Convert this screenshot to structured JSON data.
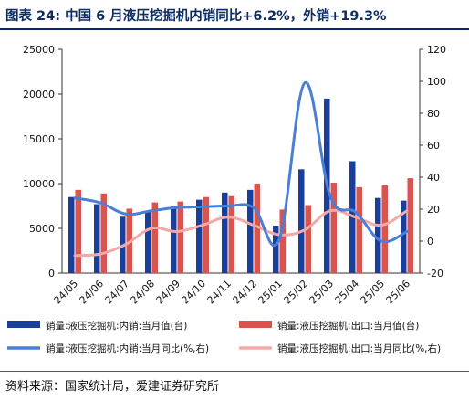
{
  "title": "图表 24: 中国 6 月液压挖掘机内销同比+6.2%，外销+19.3%",
  "source": "资料来源：国家统计局，爱建证券研究所",
  "colors": {
    "title": "#0c2d63",
    "domestic_bar": "#1a3f9a",
    "export_bar": "#d9534f",
    "domestic_line": "#4a7fd6",
    "export_line": "#f2aaa8"
  },
  "chart_data": {
    "type": "bar+line",
    "categories": [
      "24/05",
      "24/06",
      "24/07",
      "24/08",
      "24/09",
      "24/10",
      "24/11",
      "24/12",
      "25/01",
      "25/02",
      "25/03",
      "25/04",
      "25/05",
      "25/06"
    ],
    "left_axis": {
      "ylim": [
        0,
        25000
      ],
      "ticks": [
        0,
        5000,
        10000,
        15000,
        20000,
        25000
      ]
    },
    "right_axis": {
      "ylim": [
        -20,
        120
      ],
      "ticks": [
        -20,
        0,
        20,
        40,
        60,
        80,
        100,
        120
      ]
    },
    "legend_position": "bottom",
    "series": [
      {
        "name": "销量:液压挖掘机:内销:当月值(台)",
        "type": "bar",
        "axis": "left",
        "values": [
          8500,
          7700,
          6300,
          6800,
          7500,
          8200,
          9000,
          9300,
          5300,
          11600,
          19500,
          12500,
          8400,
          8100
        ]
      },
      {
        "name": "销量:液压挖掘机:出口:当月值(台)",
        "type": "bar",
        "axis": "left",
        "values": [
          9300,
          8900,
          7200,
          7900,
          8000,
          8500,
          8600,
          10000,
          7100,
          7600,
          10100,
          9600,
          9800,
          10600
        ]
      },
      {
        "name": "销量:液压挖掘机:内销:当月同比(%,右)",
        "type": "line",
        "axis": "right",
        "values": [
          27,
          24,
          17,
          19,
          21,
          21.5,
          22,
          21,
          1,
          99,
          28,
          18,
          0,
          6
        ]
      },
      {
        "name": "销量:液压挖掘机:出口:当月同比(%,右)",
        "type": "line",
        "axis": "right",
        "values": [
          -9,
          -8,
          -2,
          8,
          6,
          10,
          15,
          10,
          4,
          7,
          19,
          15,
          10,
          19
        ]
      }
    ]
  }
}
